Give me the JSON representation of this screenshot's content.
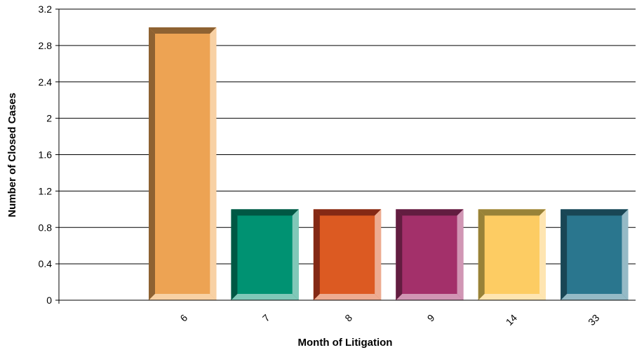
{
  "chart_data": {
    "type": "bar",
    "title": "",
    "xlabel": "Month of Litigation",
    "ylabel": "Number of Closed Cases",
    "ylim": [
      0,
      3.2
    ],
    "yticks": [
      "0",
      "0.4",
      "0.8",
      "1.2",
      "1.6",
      "2",
      "2.4",
      "2.8",
      "3.2"
    ],
    "grid": true,
    "legend": "none",
    "categories": [
      "",
      "6",
      "7",
      "8",
      "9",
      "14",
      "33"
    ],
    "values": [
      0,
      3,
      1,
      1,
      1,
      1,
      1
    ],
    "colors": [
      "#ffffff",
      "#eda353",
      "#009272",
      "#dc5a22",
      "#a3306a",
      "#fdcc63",
      "#2a768e"
    ],
    "dark_colors": [
      "#ffffff",
      "#8e6232",
      "#005844",
      "#842915",
      "#621d40",
      "#988238",
      "#194655"
    ],
    "light_colors": [
      "#ffffff",
      "#f8d1a4",
      "#80c8b8",
      "#edac91",
      "#d196b4",
      "#fee5b1",
      "#95bac6"
    ]
  }
}
